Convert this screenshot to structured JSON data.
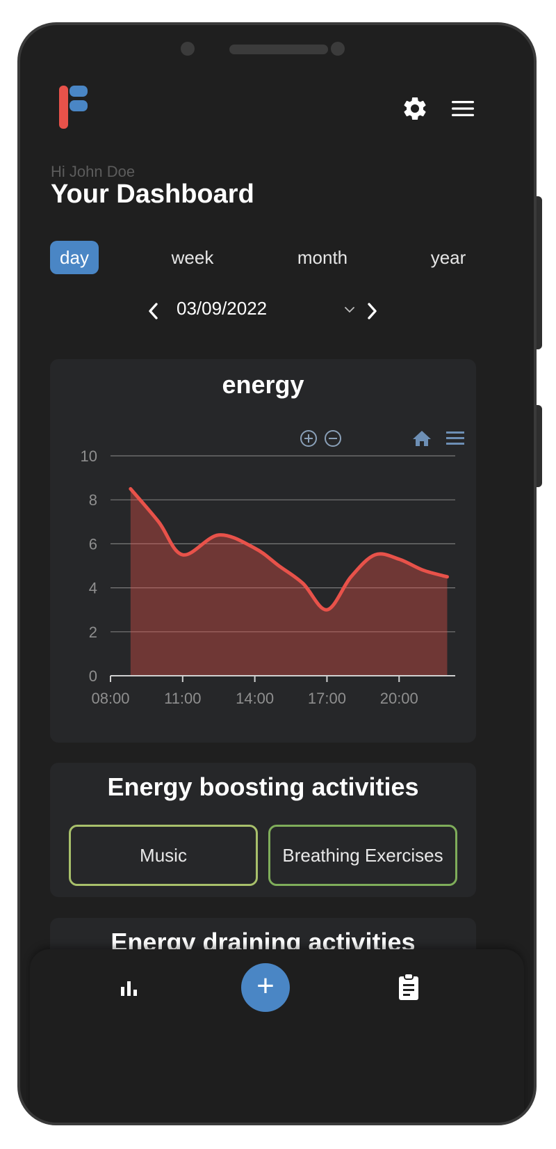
{
  "header": {
    "greeting": "Hi John Doe",
    "title": "Your Dashboard"
  },
  "tabs": [
    {
      "label": "day",
      "active": true
    },
    {
      "label": "week",
      "active": false
    },
    {
      "label": "month",
      "active": false
    },
    {
      "label": "year",
      "active": false
    }
  ],
  "date_picker": {
    "value": "03/09/2022"
  },
  "chart": {
    "title": "energy",
    "toolbar_icons": [
      "zoom-in-icon",
      "zoom-out-icon",
      "home-icon",
      "menu-icon"
    ]
  },
  "chart_data": {
    "type": "area",
    "title": "energy",
    "xlabel": "",
    "ylabel": "",
    "ylim": [
      0,
      10
    ],
    "yticks": [
      0,
      2,
      4,
      6,
      8,
      10
    ],
    "xticks": [
      "08:00",
      "11:00",
      "14:00",
      "17:00",
      "20:00"
    ],
    "grid": true,
    "series": [
      {
        "color": "#e8524a",
        "x": [
          "08:50",
          "10:00",
          "11:00",
          "12:30",
          "14:00",
          "15:00",
          "16:00",
          "17:00",
          "18:00",
          "19:00",
          "20:00",
          "21:00",
          "22:00"
        ],
        "y": [
          8.5,
          7.0,
          5.5,
          6.4,
          5.8,
          5.0,
          4.2,
          3.0,
          4.5,
          5.5,
          5.3,
          4.8,
          4.5
        ]
      }
    ]
  },
  "boosting": {
    "title": "Energy boosting activities",
    "items": [
      "Music",
      "Breathing Exercises"
    ],
    "border_colors": [
      "#a8c06b",
      "#7fad5a"
    ]
  },
  "draining": {
    "title": "Energy draining activities"
  },
  "colors": {
    "accent": "#4a86c5",
    "line": "#e8524a",
    "logo_red": "#e8524a",
    "logo_blue": "#4a86c5"
  }
}
